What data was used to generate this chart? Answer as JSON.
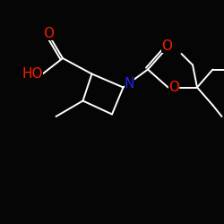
{
  "bg_color": "#050505",
  "bond_color": "#ffffff",
  "atom_colors": {
    "O": "#ff1a00",
    "N": "#2222ff",
    "C": "#ffffff"
  },
  "font_size_atom": 11,
  "lw": 1.4
}
